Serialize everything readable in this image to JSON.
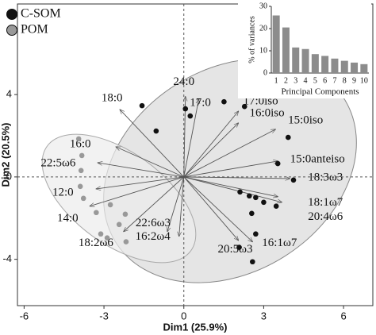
{
  "chart_data": [
    {
      "type": "scatter",
      "x_label": "Dim1 (25.9%)",
      "y_label": "Dim2 (20.5%)",
      "xlim": [
        -6.25,
        7.1
      ],
      "ylim": [
        -6.25,
        8.4
      ],
      "xticks": [
        -6,
        -3,
        0,
        3,
        6
      ],
      "yticks": [
        -4,
        0,
        4
      ],
      "legend": "top-left",
      "series": [
        {
          "name": "C-SOM",
          "color": "#111111",
          "x": [
            -1.57,
            -1.04,
            0.06,
            0.24,
            1.51,
            2.28,
            3.92,
            3.53,
            4.12,
            2.11,
            2.46,
            2.7,
            3.0,
            3.47,
            2.55,
            2.7,
            2.08,
            2.58
          ],
          "values": [
            3.46,
            2.23,
            3.31,
            2.96,
            3.65,
            3.42,
            1.92,
            0.65,
            -0.15,
            -0.73,
            -0.92,
            -1.0,
            -1.23,
            -1.42,
            -1.77,
            -2.77,
            -3.42,
            -4.12
          ]
        },
        {
          "name": "POM",
          "color": "#999999",
          "x": [
            -3.95,
            -3.83,
            -3.86,
            -3.89,
            -3.77,
            -3.29,
            -2.76,
            -2.2,
            -3.12,
            -2.88,
            -2.17,
            -2.43
          ],
          "values": [
            1.85,
            1.04,
            0.31,
            -0.46,
            -1.04,
            -1.73,
            -1.35,
            -1.81,
            -2.77,
            -2.96,
            -3.15,
            -2.31
          ]
        }
      ],
      "vectors": [
        {
          "label": "18:0",
          "x": -2.4,
          "y": 3.27
        },
        {
          "label": "24:0",
          "x": 0.06,
          "y": 3.9
        },
        {
          "label": "17:0",
          "x": 0.56,
          "y": 3.77
        },
        {
          "label": "17:0iso",
          "x": 2.05,
          "y": 3.19
        },
        {
          "label": "16:0iso",
          "x": 2.05,
          "y": 2.62
        },
        {
          "label": "15:0iso",
          "x": 3.44,
          "y": 2.31
        },
        {
          "label": "15:0anteiso",
          "x": 3.53,
          "y": 0.77
        },
        {
          "label": "18:3ω3",
          "x": 3.98,
          "y": -0.08
        },
        {
          "label": "18:1ω7",
          "x": 3.53,
          "y": -0.96
        },
        {
          "label": "20:4ω6",
          "x": 3.68,
          "y": -1.23
        },
        {
          "label": "16:1ω7",
          "x": 2.58,
          "y": -3.15
        },
        {
          "label": "20:5ω3",
          "x": 2.05,
          "y": -3.08
        },
        {
          "label": "22:6ω3",
          "x": -0.62,
          "y": -2.65
        },
        {
          "label": "16:2ω4",
          "x": -0.18,
          "y": -2.88
        },
        {
          "label": "18:2ω6",
          "x": -2.26,
          "y": -2.65
        },
        {
          "label": "14:0",
          "x": -3.53,
          "y": -1.42
        },
        {
          "label": "12:0",
          "x": -3.29,
          "y": -0.58
        },
        {
          "label": "22:5ω6",
          "x": -3.23,
          "y": 0.69
        },
        {
          "label": "16:0",
          "x": -2.55,
          "y": 1.46
        }
      ]
    },
    {
      "type": "bar",
      "x_label": "Principal Components",
      "y_label": "% of variances",
      "categories": [
        "1",
        "2",
        "3",
        "4",
        "5",
        "6",
        "7",
        "8",
        "9",
        "10"
      ],
      "values": [
        25.9,
        20.5,
        11.5,
        10.8,
        8.5,
        7.7,
        6.5,
        5.5,
        4.7,
        4.0
      ],
      "color": "#8c8c8c",
      "ylim": [
        0,
        30
      ],
      "yticks": [
        0,
        10,
        20,
        30
      ]
    }
  ]
}
